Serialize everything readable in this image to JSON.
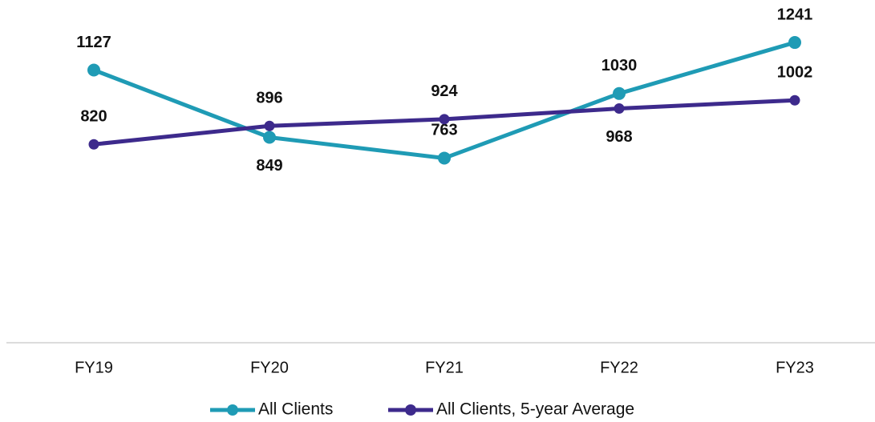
{
  "chart_data": {
    "type": "line",
    "categories": [
      "FY19",
      "FY20",
      "FY21",
      "FY22",
      "FY23"
    ],
    "series": [
      {
        "name": "All Clients",
        "color": "#1f9bb5",
        "values": [
          1127,
          849,
          763,
          1030,
          1241
        ]
      },
      {
        "name": "All Clients, 5-year Average",
        "color": "#3d2a8c",
        "values": [
          820,
          896,
          924,
          968,
          1002
        ]
      }
    ],
    "ylim": [
      0,
      1400
    ]
  }
}
